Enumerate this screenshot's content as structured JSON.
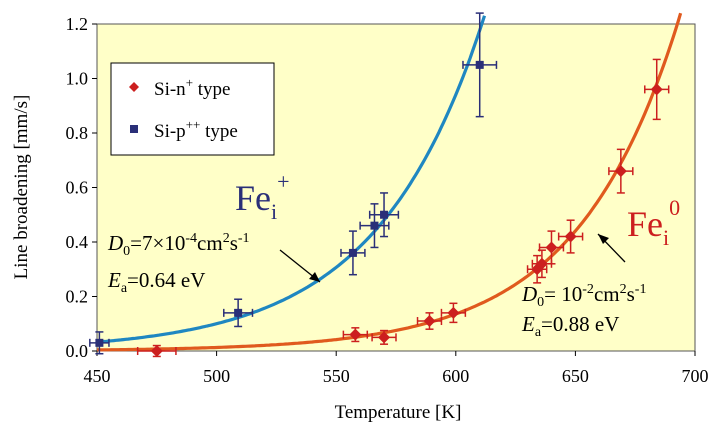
{
  "chart_data": {
    "type": "scatter",
    "xlabel": "Temperature [K]",
    "ylabel": "Line broadening [mm/s]",
    "xlim": [
      450,
      700
    ],
    "ylim": [
      0,
      1.2
    ],
    "x_ticks": [
      "450",
      "500",
      "550",
      "600",
      "650",
      "700"
    ],
    "y_ticks": [
      "0.0",
      "0.2",
      "0.4",
      "0.6",
      "0.8",
      "1.0",
      "1.2"
    ],
    "grid": false,
    "legend_position": "top-left",
    "plot_background": "#ffffc8",
    "series": [
      {
        "name": "Si-n⁺ type",
        "legend_base": "Si-n",
        "legend_sup": "+",
        "legend_tail": " type",
        "marker": "diamond",
        "color": "#cc1f1f",
        "fit_color": "#e05a1e",
        "points": [
          {
            "x": 475,
            "y": 0.0,
            "xerr": 8,
            "yerr": 0.02
          },
          {
            "x": 558,
            "y": 0.06,
            "xerr": 5,
            "yerr": 0.025
          },
          {
            "x": 570,
            "y": 0.05,
            "xerr": 5,
            "yerr": 0.025
          },
          {
            "x": 589,
            "y": 0.11,
            "xerr": 5,
            "yerr": 0.03
          },
          {
            "x": 599,
            "y": 0.14,
            "xerr": 5,
            "yerr": 0.035
          },
          {
            "x": 634,
            "y": 0.3,
            "xerr": 4,
            "yerr": 0.05
          },
          {
            "x": 636,
            "y": 0.32,
            "xerr": 4,
            "yerr": 0.05
          },
          {
            "x": 640,
            "y": 0.38,
            "xerr": 5,
            "yerr": 0.06
          },
          {
            "x": 648,
            "y": 0.42,
            "xerr": 5,
            "yerr": 0.06
          },
          {
            "x": 669,
            "y": 0.66,
            "xerr": 5,
            "yerr": 0.08
          },
          {
            "x": 684,
            "y": 0.96,
            "xerr": 5,
            "yerr": 0.11
          }
        ],
        "fit": {
          "D0_cm2_per_s": 0.01,
          "Ea_eV": 0.88
        }
      },
      {
        "name": "Si-p⁺⁺ type",
        "legend_base": "Si-p",
        "legend_sup": "++",
        "legend_tail": " type",
        "marker": "square",
        "color": "#2a2f78",
        "fit_color": "#1f87c1",
        "points": [
          {
            "x": 451,
            "y": 0.03,
            "xerr": 4,
            "yerr": 0.04
          },
          {
            "x": 509,
            "y": 0.14,
            "xerr": 6,
            "yerr": 0.05
          },
          {
            "x": 557,
            "y": 0.36,
            "xerr": 5,
            "yerr": 0.08
          },
          {
            "x": 566,
            "y": 0.46,
            "xerr": 6,
            "yerr": 0.08
          },
          {
            "x": 570,
            "y": 0.5,
            "xerr": 6,
            "yerr": 0.08
          },
          {
            "x": 610,
            "y": 1.05,
            "xerr": 7,
            "yerr": 0.19
          }
        ],
        "fit": {
          "D0_cm2_per_s": 0.0007,
          "Ea_eV": 0.64
        }
      }
    ],
    "annotations": {
      "fe_plus": {
        "base": "Fe",
        "sub": "i",
        "sup": "+",
        "color": "#2a2f78"
      },
      "fe_zero": {
        "base": "Fe",
        "sub": "i",
        "sup": "0",
        "color": "#cc1f1f"
      },
      "p_fit_d0": {
        "sym": "D",
        "sub": "0",
        "eq": "=7×10",
        "exp": "-4",
        "unit": "cm",
        "unit_exp": "2",
        "unit2": "s",
        "unit2_exp": "-1"
      },
      "p_fit_ea": {
        "sym": "E",
        "sub": "a",
        "eq": "=0.64 eV"
      },
      "n_fit_d0": {
        "sym": "D",
        "sub": "0",
        "eq": "= 10",
        "exp": "-2",
        "unit": "cm",
        "unit_exp": "2",
        "unit2": "s",
        "unit2_exp": "-1"
      },
      "n_fit_ea": {
        "sym": "E",
        "sub": "a",
        "eq": "=0.88 eV"
      }
    }
  }
}
